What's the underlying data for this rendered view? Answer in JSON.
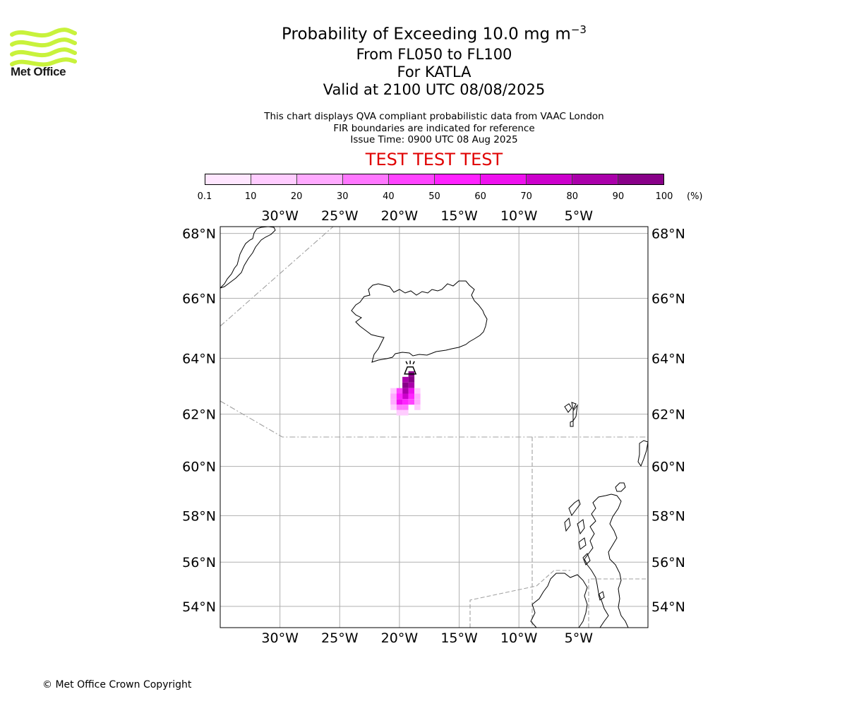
{
  "brand": {
    "name": "Met Office",
    "logo_color": "#c8f23c"
  },
  "title": {
    "line1_main": "Probability of Exceeding 10.0 mg m",
    "line1_sup": "−3",
    "line2": "From FL050 to FL100",
    "line3": "For KATLA",
    "line4": "Valid at 2100 UTC 08/08/2025"
  },
  "subtitle": {
    "line1": "This chart displays QVA compliant probabilistic data from VAAC London",
    "line2": "FIR boundaries are indicated for reference",
    "line3": "Issue Time: 0900 UTC 08 Aug 2025"
  },
  "test_banner": {
    "text": "TEST TEST TEST",
    "color": "#e00000"
  },
  "colorbar": {
    "ticks": [
      "0.1",
      "10",
      "20",
      "30",
      "40",
      "50",
      "60",
      "70",
      "80",
      "90",
      "100"
    ],
    "unit": "(%)",
    "colors": [
      "#ffe6ff",
      "#ffccff",
      "#ffaaff",
      "#ff77ff",
      "#ff44ff",
      "#ff22ff",
      "#ee11ee",
      "#cc00cc",
      "#aa00aa",
      "#880088",
      "#660066"
    ]
  },
  "map": {
    "lon_labels": [
      "30°W",
      "25°W",
      "20°W",
      "15°W",
      "10°W",
      "5°W"
    ],
    "lat_labels": [
      "68°N",
      "66°N",
      "64°N",
      "62°N",
      "60°N",
      "58°N",
      "56°N",
      "54°N"
    ],
    "lon_values": [
      -30,
      -25,
      -20,
      -15,
      -10,
      -5
    ],
    "lat_values": [
      68,
      66,
      64,
      62,
      60,
      58,
      56,
      54
    ],
    "extent": {
      "lon_min": -35,
      "lon_max": 0.8,
      "lat_min": 53,
      "lat_max": 68.2
    },
    "volcano": {
      "name": "KATLA",
      "lon": -19.1,
      "lat": 63.65
    },
    "plume_cells": [
      {
        "lon": -19.0,
        "lat": 63.45,
        "level": 9
      },
      {
        "lon": -19.0,
        "lat": 63.25,
        "level": 9
      },
      {
        "lon": -19.0,
        "lat": 63.05,
        "level": 8
      },
      {
        "lon": -19.0,
        "lat": 62.85,
        "level": 6
      },
      {
        "lon": -19.0,
        "lat": 62.65,
        "level": 5
      },
      {
        "lon": -19.0,
        "lat": 62.45,
        "level": 4
      },
      {
        "lon": -19.5,
        "lat": 63.25,
        "level": 8
      },
      {
        "lon": -19.5,
        "lat": 63.05,
        "level": 9
      },
      {
        "lon": -19.5,
        "lat": 62.85,
        "level": 8
      },
      {
        "lon": -19.5,
        "lat": 62.65,
        "level": 7
      },
      {
        "lon": -19.5,
        "lat": 62.45,
        "level": 5
      },
      {
        "lon": -19.5,
        "lat": 62.25,
        "level": 3
      },
      {
        "lon": -19.5,
        "lat": 62.05,
        "level": 1
      },
      {
        "lon": -20.0,
        "lat": 62.85,
        "level": 4
      },
      {
        "lon": -20.0,
        "lat": 62.65,
        "level": 5
      },
      {
        "lon": -20.0,
        "lat": 62.45,
        "level": 6
      },
      {
        "lon": -20.0,
        "lat": 62.25,
        "level": 3
      },
      {
        "lon": -20.0,
        "lat": 62.05,
        "level": 1
      },
      {
        "lon": -20.5,
        "lat": 62.85,
        "level": 1
      },
      {
        "lon": -20.5,
        "lat": 62.65,
        "level": 2
      },
      {
        "lon": -20.5,
        "lat": 62.45,
        "level": 2
      },
      {
        "lon": -20.5,
        "lat": 62.25,
        "level": 1
      },
      {
        "lon": -18.5,
        "lat": 62.65,
        "level": 2
      },
      {
        "lon": -18.5,
        "lat": 62.45,
        "level": 2
      },
      {
        "lon": -18.5,
        "lat": 62.25,
        "level": 1
      },
      {
        "lon": -18.5,
        "lat": 62.85,
        "level": 1
      }
    ]
  },
  "footer": {
    "copyright": "© Met Office Crown Copyright"
  }
}
